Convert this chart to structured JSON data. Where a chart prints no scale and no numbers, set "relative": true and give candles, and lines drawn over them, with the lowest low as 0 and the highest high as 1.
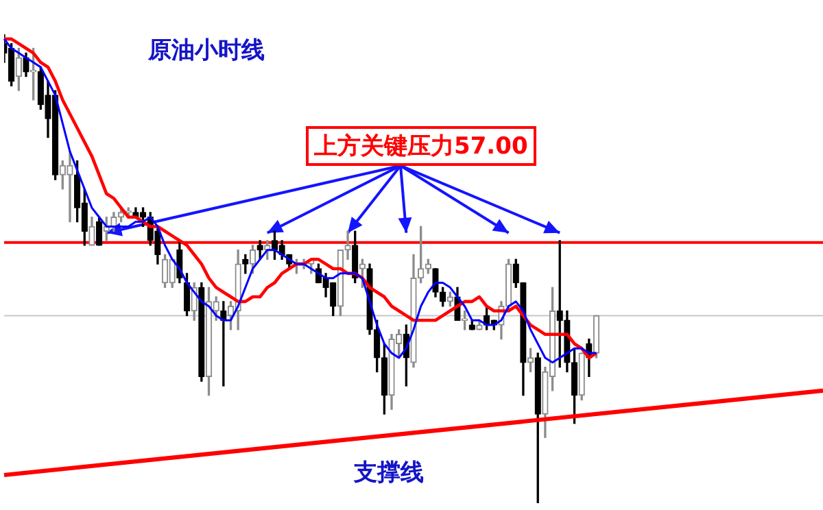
{
  "chart_data": {
    "type": "candlestick",
    "title": "原油小时线",
    "relative": true,
    "categories": [
      null,
      null,
      null,
      null,
      null,
      null,
      null,
      null,
      null,
      null,
      null,
      null,
      null,
      null,
      null,
      null,
      null,
      null,
      null,
      null,
      null,
      null,
      null,
      null,
      null,
      null,
      null,
      null,
      null,
      null,
      null,
      null,
      null,
      null,
      null,
      null,
      null,
      null,
      null,
      null,
      null,
      null,
      null,
      null,
      null,
      null,
      null,
      null,
      null,
      null,
      null,
      null,
      null,
      null,
      null,
      null,
      null,
      null,
      null,
      null,
      null,
      null,
      null,
      null,
      null,
      null,
      null,
      null,
      null,
      null,
      null,
      null,
      null,
      null,
      null,
      null,
      null,
      null,
      null,
      null,
      null,
      null,
      null,
      null,
      null,
      null,
      null,
      null,
      null,
      null,
      null,
      null,
      null,
      null,
      null,
      null,
      null,
      null,
      null,
      null,
      null,
      null,
      null,
      null,
      null,
      null,
      null,
      null,
      null,
      null,
      null,
      null,
      null
    ],
    "ohlc": [
      [
        0.98,
        1.0,
        0.94,
        0.96
      ],
      [
        0.97,
        0.98,
        0.89,
        0.9
      ],
      [
        0.91,
        0.97,
        0.88,
        0.95
      ],
      [
        0.95,
        0.96,
        0.91,
        0.92
      ],
      [
        0.92,
        0.97,
        0.86,
        0.92
      ],
      [
        0.92,
        0.93,
        0.84,
        0.85
      ],
      [
        0.87,
        0.9,
        0.78,
        0.82
      ],
      [
        0.87,
        0.88,
        0.69,
        0.7
      ],
      [
        0.7,
        0.73,
        0.67,
        0.72
      ],
      [
        0.7,
        0.75,
        0.6,
        0.72
      ],
      [
        0.7,
        0.73,
        0.6,
        0.63
      ],
      [
        0.64,
        0.67,
        0.55,
        0.58
      ],
      [
        0.55,
        0.61,
        0.55,
        0.59
      ],
      [
        0.6,
        0.61,
        0.55,
        0.55
      ],
      [
        0.58,
        0.61,
        0.56,
        0.59
      ],
      [
        0.59,
        0.62,
        0.58,
        0.61
      ],
      [
        0.61,
        0.63,
        0.6,
        0.62
      ],
      [
        0.62,
        0.63,
        0.61,
        0.62
      ],
      [
        0.62,
        0.63,
        0.61,
        0.61
      ],
      [
        0.62,
        0.63,
        0.59,
        0.61
      ],
      [
        0.61,
        0.62,
        0.55,
        0.56
      ],
      [
        0.58,
        0.59,
        0.51,
        0.53
      ],
      [
        0.47,
        0.53,
        0.46,
        0.52
      ],
      [
        0.47,
        0.52,
        0.46,
        0.52
      ],
      [
        0.54,
        0.56,
        0.47,
        0.48
      ],
      [
        0.47,
        0.49,
        0.4,
        0.41
      ],
      [
        0.41,
        0.47,
        0.39,
        0.46
      ],
      [
        0.46,
        0.47,
        0.26,
        0.27
      ],
      [
        0.27,
        0.46,
        0.23,
        0.43
      ],
      [
        0.41,
        0.44,
        0.39,
        0.43
      ],
      [
        0.41,
        0.43,
        0.25,
        0.39
      ],
      [
        0.4,
        0.43,
        0.37,
        0.42
      ],
      [
        0.41,
        0.54,
        0.37,
        0.51
      ],
      [
        0.52,
        0.53,
        0.49,
        0.51
      ],
      [
        0.51,
        0.55,
        0.49,
        0.54
      ],
      [
        0.55,
        0.56,
        0.52,
        0.54
      ],
      [
        0.54,
        0.56,
        0.52,
        0.55
      ],
      [
        0.56,
        0.58,
        0.52,
        0.54
      ],
      [
        0.55,
        0.56,
        0.52,
        0.53
      ],
      [
        0.53,
        0.53,
        0.5,
        0.51
      ],
      [
        0.51,
        0.52,
        0.49,
        0.51
      ],
      [
        0.51,
        0.52,
        0.5,
        0.51
      ],
      [
        0.51,
        0.52,
        0.49,
        0.52
      ],
      [
        0.5,
        0.51,
        0.47,
        0.47
      ],
      [
        0.48,
        0.49,
        0.44,
        0.46
      ],
      [
        0.47,
        0.47,
        0.4,
        0.42
      ],
      [
        0.42,
        0.54,
        0.4,
        0.54
      ],
      [
        0.54,
        0.58,
        0.52,
        0.55
      ],
      [
        0.55,
        0.58,
        0.47,
        0.48
      ],
      [
        0.5,
        0.52,
        0.46,
        0.51
      ],
      [
        0.5,
        0.51,
        0.36,
        0.37
      ],
      [
        0.37,
        0.39,
        0.28,
        0.31
      ],
      [
        0.31,
        0.34,
        0.19,
        0.23
      ],
      [
        0.23,
        0.36,
        0.2,
        0.35
      ],
      [
        0.34,
        0.37,
        0.31,
        0.36
      ],
      [
        0.36,
        0.38,
        0.25,
        0.31
      ],
      [
        0.3,
        0.53,
        0.29,
        0.48
      ],
      [
        0.48,
        0.59,
        0.47,
        0.5
      ],
      [
        0.5,
        0.52,
        0.49,
        0.51
      ],
      [
        0.5,
        0.5,
        0.44,
        0.45
      ],
      [
        0.45,
        0.46,
        0.42,
        0.43
      ],
      [
        0.43,
        0.45,
        0.42,
        0.44
      ],
      [
        0.44,
        0.46,
        0.39,
        0.39
      ],
      [
        0.39,
        0.41,
        0.37,
        0.39
      ],
      [
        0.38,
        0.39,
        0.37,
        0.37
      ],
      [
        0.37,
        0.39,
        0.37,
        0.38
      ],
      [
        0.4,
        0.42,
        0.37,
        0.38
      ],
      [
        0.39,
        0.39,
        0.37,
        0.38
      ],
      [
        0.38,
        0.43,
        0.35,
        0.42
      ],
      [
        0.42,
        0.52,
        0.41,
        0.51
      ],
      [
        0.51,
        0.52,
        0.46,
        0.47
      ],
      [
        0.47,
        0.47,
        0.23,
        0.3
      ],
      [
        0.3,
        0.33,
        0.28,
        0.31
      ],
      [
        0.31,
        0.32,
        0.0,
        0.19
      ],
      [
        0.19,
        0.29,
        0.14,
        0.28
      ],
      [
        0.27,
        0.46,
        0.24,
        0.41
      ],
      [
        0.41,
        0.56,
        0.29,
        0.39
      ],
      [
        0.39,
        0.41,
        0.28,
        0.3
      ],
      [
        0.3,
        0.33,
        0.17,
        0.23
      ],
      [
        0.23,
        0.32,
        0.22,
        0.32
      ],
      [
        0.34,
        0.35,
        0.27,
        0.31
      ],
      [
        0.32,
        0.4,
        0.31,
        0.4
      ],
      null,
      null,
      null,
      null,
      null,
      null,
      null,
      null,
      null,
      null,
      null,
      null,
      null,
      null,
      null,
      null,
      null,
      null,
      null,
      null,
      null,
      null,
      null,
      null,
      null,
      null,
      null,
      null,
      null,
      null,
      null
    ],
    "series": [
      {
        "type": "line",
        "color": "#0000ff",
        "values": [
          0.99,
          0.97,
          0.96,
          0.95,
          0.94,
          0.93,
          0.9,
          0.87,
          0.81,
          0.75,
          0.71,
          0.67,
          0.63,
          0.61,
          0.59,
          0.59,
          0.59,
          0.59,
          0.6,
          0.6,
          0.61,
          0.59,
          0.55,
          0.52,
          0.5,
          0.47,
          0.45,
          0.43,
          0.42,
          0.4,
          0.39,
          0.39,
          0.42,
          0.46,
          0.5,
          0.52,
          0.54,
          0.54,
          0.53,
          0.52,
          0.51,
          0.51,
          0.5,
          0.49,
          0.48,
          0.48,
          0.49,
          0.49,
          0.49,
          0.48,
          0.43,
          0.38,
          0.34,
          0.32,
          0.31,
          0.33,
          0.37,
          0.42,
          0.45,
          0.47,
          0.47,
          0.46,
          0.44,
          0.42,
          0.39,
          0.39,
          0.38,
          0.38,
          0.39,
          0.42,
          0.43,
          0.41,
          0.37,
          0.34,
          0.31,
          0.3,
          0.31,
          0.32,
          0.33,
          0.33,
          0.32,
          0.32,
          null,
          null,
          null,
          null,
          null,
          null,
          null,
          null,
          null,
          null,
          null,
          null,
          null,
          null,
          null,
          null,
          null,
          null,
          null,
          null,
          null,
          null,
          null,
          null,
          null,
          null,
          null,
          null,
          null,
          null,
          null
        ]
      },
      {
        "type": "line",
        "color": "#ff0000",
        "values": [
          0.99,
          0.99,
          0.98,
          0.97,
          0.96,
          0.94,
          0.93,
          0.9,
          0.86,
          0.83,
          0.8,
          0.77,
          0.74,
          0.7,
          0.66,
          0.65,
          0.63,
          0.61,
          0.61,
          0.6,
          0.59,
          0.59,
          0.58,
          0.57,
          0.56,
          0.55,
          0.53,
          0.51,
          0.48,
          0.46,
          0.45,
          0.44,
          0.43,
          0.43,
          0.44,
          0.44,
          0.46,
          0.47,
          0.49,
          0.5,
          0.51,
          0.51,
          0.52,
          0.52,
          0.51,
          0.5,
          0.5,
          0.49,
          0.49,
          0.48,
          0.46,
          0.45,
          0.44,
          0.42,
          0.41,
          0.4,
          0.39,
          0.39,
          0.39,
          0.39,
          0.4,
          0.41,
          0.42,
          0.43,
          0.43,
          0.44,
          0.42,
          0.41,
          0.41,
          0.41,
          0.42,
          0.4,
          0.38,
          0.37,
          0.36,
          0.36,
          0.36,
          0.36,
          0.34,
          0.33,
          0.31,
          0.32,
          null,
          null,
          null,
          null,
          null,
          null,
          null,
          null,
          null,
          null,
          null,
          null,
          null,
          null,
          null,
          null,
          null,
          null,
          null,
          null,
          null,
          null,
          null,
          null,
          null,
          null,
          null,
          null,
          null,
          null,
          null
        ]
      },
      {
        "type": "line",
        "name": "支撑线",
        "color": "#ff0000",
        "values": [
          0.06,
          null,
          null,
          null,
          null,
          null,
          null,
          null,
          null,
          null,
          null,
          null,
          null,
          null,
          null,
          null,
          null,
          null,
          null,
          null,
          null,
          null,
          null,
          null,
          null,
          null,
          null,
          null,
          null,
          null,
          null,
          null,
          null,
          null,
          null,
          null,
          null,
          null,
          null,
          null,
          null,
          null,
          null,
          null,
          null,
          null,
          null,
          null,
          null,
          null,
          null,
          null,
          null,
          null,
          null,
          null,
          null,
          null,
          null,
          null,
          null,
          null,
          null,
          null,
          null,
          null,
          null,
          null,
          null,
          null,
          null,
          null,
          null,
          null,
          null,
          null,
          null,
          null,
          null,
          null,
          null,
          null,
          null,
          null,
          null,
          null,
          null,
          null,
          null,
          null,
          null,
          null,
          null,
          null,
          null,
          null,
          null,
          null,
          null,
          null,
          null,
          null,
          null,
          null,
          null,
          null,
          null,
          null,
          null,
          null,
          null,
          null,
          0.24
        ]
      }
    ],
    "ref_lines": [
      {
        "axis": "y",
        "value": 0.556,
        "label": "上方关键压力57.00",
        "color": "#ff0000"
      },
      {
        "axis": "y",
        "value": 0.4,
        "label": null,
        "color": "#c8c8c8"
      }
    ]
  }
}
